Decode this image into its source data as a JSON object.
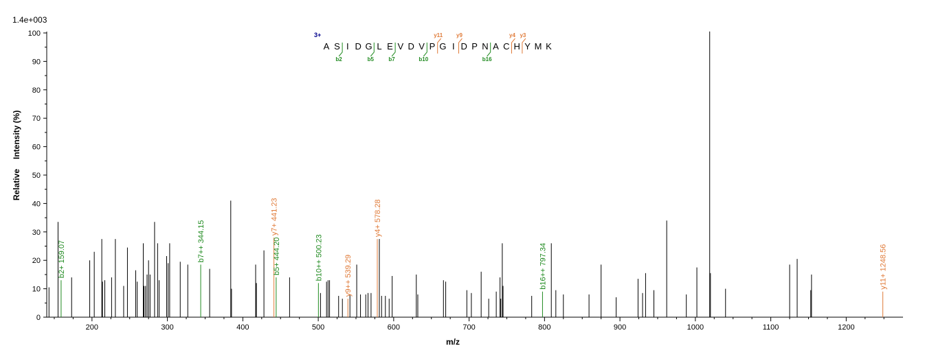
{
  "chart_data": {
    "type": "bar",
    "scale_label": "1.4e+003",
    "xlabel": "m/z",
    "ylabel_left": "Relative",
    "ylabel_right": "Intensity (%)",
    "xlim": [
      140,
      1275
    ],
    "ylim": [
      0,
      100
    ],
    "x_ticks": [
      200,
      300,
      400,
      500,
      600,
      700,
      800,
      900,
      1000,
      1100,
      1200
    ],
    "y_ticks": [
      0,
      10,
      20,
      30,
      40,
      50,
      60,
      70,
      80,
      90,
      100
    ],
    "colors": {
      "b": "#1f8a1f",
      "y": "#e07b39",
      "other": "#000000",
      "charge": "#00008b"
    },
    "peaks": [
      {
        "mz": 143,
        "i": 10.5,
        "t": "o"
      },
      {
        "mz": 155,
        "i": 33.5,
        "t": "o"
      },
      {
        "mz": 159.07,
        "i": 13,
        "t": "b",
        "label": "b2+ 159.07"
      },
      {
        "mz": 173,
        "i": 14,
        "t": "o"
      },
      {
        "mz": 197,
        "i": 20,
        "t": "o"
      },
      {
        "mz": 203,
        "i": 23,
        "t": "o"
      },
      {
        "mz": 213,
        "i": 27.5,
        "t": "o"
      },
      {
        "mz": 214,
        "i": 12.5,
        "t": "o"
      },
      {
        "mz": 217,
        "i": 13,
        "t": "o"
      },
      {
        "mz": 226,
        "i": 14,
        "t": "o"
      },
      {
        "mz": 231,
        "i": 27.5,
        "t": "o"
      },
      {
        "mz": 242,
        "i": 11,
        "t": "o"
      },
      {
        "mz": 247,
        "i": 24.5,
        "t": "o"
      },
      {
        "mz": 258,
        "i": 16.5,
        "t": "o"
      },
      {
        "mz": 260,
        "i": 12.5,
        "t": "o"
      },
      {
        "mz": 268,
        "i": 26,
        "t": "o"
      },
      {
        "mz": 269,
        "i": 11,
        "t": "o"
      },
      {
        "mz": 271,
        "i": 11,
        "t": "o"
      },
      {
        "mz": 273,
        "i": 15,
        "t": "o"
      },
      {
        "mz": 275,
        "i": 20,
        "t": "o"
      },
      {
        "mz": 277,
        "i": 15,
        "t": "o"
      },
      {
        "mz": 283,
        "i": 33.5,
        "t": "o"
      },
      {
        "mz": 287,
        "i": 26,
        "t": "o"
      },
      {
        "mz": 289,
        "i": 13,
        "t": "o"
      },
      {
        "mz": 299,
        "i": 21.5,
        "t": "o"
      },
      {
        "mz": 301,
        "i": 19,
        "t": "o"
      },
      {
        "mz": 303,
        "i": 26,
        "t": "o"
      },
      {
        "mz": 317,
        "i": 19.5,
        "t": "o"
      },
      {
        "mz": 327,
        "i": 18.5,
        "t": "o"
      },
      {
        "mz": 344.15,
        "i": 18.5,
        "t": "b",
        "label": "b7++ 344.15"
      },
      {
        "mz": 356,
        "i": 17,
        "t": "o"
      },
      {
        "mz": 384,
        "i": 41,
        "t": "o"
      },
      {
        "mz": 385,
        "i": 10,
        "t": "o"
      },
      {
        "mz": 417,
        "i": 18.5,
        "t": "o"
      },
      {
        "mz": 418,
        "i": 12,
        "t": "o"
      },
      {
        "mz": 428,
        "i": 23.5,
        "t": "o"
      },
      {
        "mz": 441.23,
        "i": 28,
        "t": "y",
        "label": "y7+ 441.23"
      },
      {
        "mz": 444.2,
        "i": 14,
        "t": "b",
        "label": "b5+ 444.20"
      },
      {
        "mz": 462,
        "i": 14,
        "t": "o"
      },
      {
        "mz": 500.23,
        "i": 12,
        "t": "b",
        "label": "b10++ 500.23"
      },
      {
        "mz": 503,
        "i": 8.5,
        "t": "o"
      },
      {
        "mz": 511,
        "i": 12.5,
        "t": "o"
      },
      {
        "mz": 513,
        "i": 13,
        "t": "o"
      },
      {
        "mz": 515,
        "i": 13,
        "t": "o"
      },
      {
        "mz": 527,
        "i": 7.5,
        "t": "o"
      },
      {
        "mz": 532,
        "i": 6.5,
        "t": "o"
      },
      {
        "mz": 539.29,
        "i": 6.5,
        "t": "y",
        "label": "y9++ 539.29"
      },
      {
        "mz": 542,
        "i": 8,
        "t": "o"
      },
      {
        "mz": 551,
        "i": 18.5,
        "t": "o"
      },
      {
        "mz": 556,
        "i": 8,
        "t": "o"
      },
      {
        "mz": 563,
        "i": 8,
        "t": "o"
      },
      {
        "mz": 566,
        "i": 8.5,
        "t": "o"
      },
      {
        "mz": 570,
        "i": 8.5,
        "t": "o"
      },
      {
        "mz": 578.28,
        "i": 27.5,
        "t": "y",
        "label": "y4+ 578.28"
      },
      {
        "mz": 581,
        "i": 27.5,
        "t": "o"
      },
      {
        "mz": 584,
        "i": 7.5,
        "t": "o"
      },
      {
        "mz": 589,
        "i": 7.5,
        "t": "o"
      },
      {
        "mz": 594,
        "i": 6.5,
        "t": "o"
      },
      {
        "mz": 598,
        "i": 14.5,
        "t": "o"
      },
      {
        "mz": 630,
        "i": 15,
        "t": "o"
      },
      {
        "mz": 632,
        "i": 8,
        "t": "o"
      },
      {
        "mz": 666,
        "i": 13,
        "t": "o"
      },
      {
        "mz": 669,
        "i": 12.5,
        "t": "o"
      },
      {
        "mz": 697,
        "i": 9.5,
        "t": "o"
      },
      {
        "mz": 703,
        "i": 8.5,
        "t": "o"
      },
      {
        "mz": 716,
        "i": 16,
        "t": "o"
      },
      {
        "mz": 726,
        "i": 6.5,
        "t": "o"
      },
      {
        "mz": 736,
        "i": 9,
        "t": "o"
      },
      {
        "mz": 741,
        "i": 14,
        "t": "o"
      },
      {
        "mz": 742,
        "i": 6.5,
        "t": "o"
      },
      {
        "mz": 744,
        "i": 26,
        "t": "o"
      },
      {
        "mz": 745,
        "i": 11,
        "t": "o"
      },
      {
        "mz": 783,
        "i": 7.5,
        "t": "o"
      },
      {
        "mz": 797.34,
        "i": 9,
        "t": "b",
        "label": "b16++ 797.34"
      },
      {
        "mz": 809,
        "i": 26,
        "t": "o"
      },
      {
        "mz": 815,
        "i": 9.5,
        "t": "o"
      },
      {
        "mz": 825,
        "i": 8,
        "t": "o"
      },
      {
        "mz": 859,
        "i": 8,
        "t": "o"
      },
      {
        "mz": 875,
        "i": 18.5,
        "t": "o"
      },
      {
        "mz": 895,
        "i": 7,
        "t": "o"
      },
      {
        "mz": 924,
        "i": 13.5,
        "t": "o"
      },
      {
        "mz": 930,
        "i": 8.5,
        "t": "o"
      },
      {
        "mz": 934,
        "i": 15.5,
        "t": "o"
      },
      {
        "mz": 945,
        "i": 9.5,
        "t": "o"
      },
      {
        "mz": 962,
        "i": 34,
        "t": "o"
      },
      {
        "mz": 988,
        "i": 8,
        "t": "o"
      },
      {
        "mz": 1002,
        "i": 17.5,
        "t": "o"
      },
      {
        "mz": 1019,
        "i": 100.5,
        "t": "o"
      },
      {
        "mz": 1020,
        "i": 15.5,
        "t": "o"
      },
      {
        "mz": 1040,
        "i": 10,
        "t": "o"
      },
      {
        "mz": 1125,
        "i": 18.5,
        "t": "o"
      },
      {
        "mz": 1135,
        "i": 20.5,
        "t": "o"
      },
      {
        "mz": 1153,
        "i": 9.5,
        "t": "o"
      },
      {
        "mz": 1154,
        "i": 15,
        "t": "o"
      },
      {
        "mz": 1248.56,
        "i": 9,
        "t": "y",
        "label": "y11+ 1248.56"
      }
    ],
    "sequence": {
      "charge": "3+",
      "residues": [
        "A",
        "S",
        "I",
        "D",
        "G",
        "L",
        "E",
        "V",
        "D",
        "V",
        "P",
        "G",
        "I",
        "D",
        "P",
        "N",
        "A",
        "C",
        "H",
        "Y",
        "M",
        "K"
      ],
      "b_ions": [
        {
          "after": 2,
          "label": "b2"
        },
        {
          "after": 5,
          "label": "b5"
        },
        {
          "after": 7,
          "label": "b7"
        },
        {
          "after": 10,
          "label": "b10"
        },
        {
          "after": 16,
          "label": "b16"
        }
      ],
      "y_ions": [
        {
          "after": 11,
          "label": "y11"
        },
        {
          "after": 13,
          "label": "y9"
        },
        {
          "after": 18,
          "label": "y4"
        },
        {
          "after": 19,
          "label": "y3"
        }
      ]
    }
  }
}
